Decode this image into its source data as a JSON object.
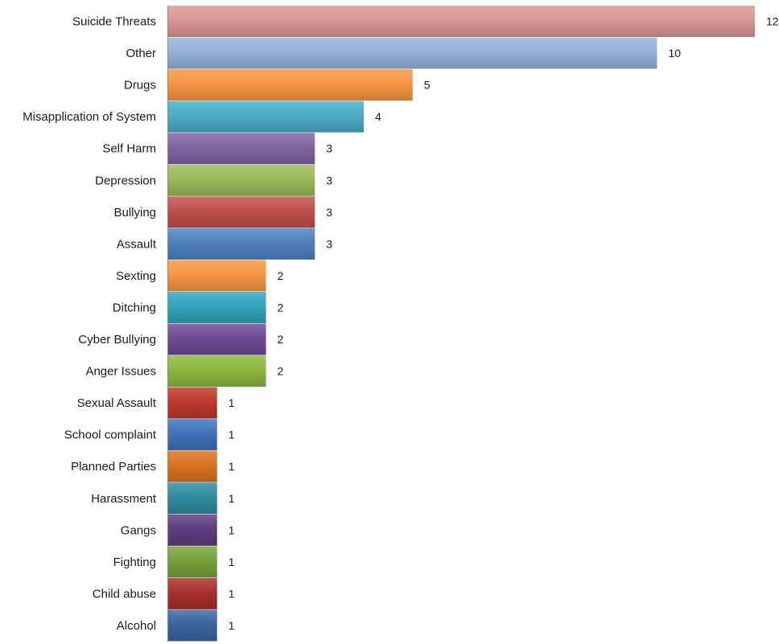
{
  "chart_data": {
    "type": "bar",
    "orientation": "horizontal",
    "categories": [
      "Suicide Threats",
      "Other",
      "Drugs",
      "Misapplication of System",
      "Self Harm",
      "Depression",
      "Bullying",
      "Assault",
      "Sexting",
      "Ditching",
      "Cyber Bullying",
      "Anger Issues",
      "Sexual Assault",
      "School complaint",
      "Planned Parties",
      "Harassment",
      "Gangs",
      "Fighting",
      "Child abuse",
      "Alcohol"
    ],
    "values": [
      12,
      10,
      5,
      4,
      3,
      3,
      3,
      3,
      2,
      2,
      2,
      2,
      1,
      1,
      1,
      1,
      1,
      1,
      1,
      1
    ],
    "colors": [
      "#d99795",
      "#95b3d7",
      "#f79646",
      "#4bacc6",
      "#8064a2",
      "#9bbb59",
      "#c0504d",
      "#4f81bd",
      "#f79646",
      "#31a4bc",
      "#6e4a96",
      "#8cb83e",
      "#c0392b",
      "#3f72ba",
      "#d9731f",
      "#2f8ba0",
      "#5f3d7f",
      "#76a23a",
      "#a8302c",
      "#3a65a0"
    ],
    "xlim": [
      0,
      12
    ],
    "title": "",
    "xlabel": "",
    "ylabel": "",
    "grid": false,
    "legend": "none",
    "data_labels": true
  }
}
